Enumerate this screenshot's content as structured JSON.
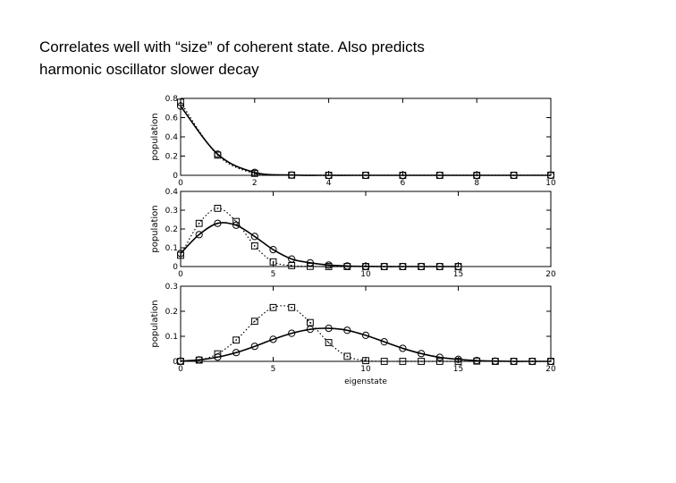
{
  "caption": {
    "line1": "Correlates well with “size” of coherent state. Also predicts",
    "line2": "harmonic oscillator slower decay"
  },
  "chart_data": [
    {
      "type": "line",
      "ylabel": "population",
      "xlabel": "",
      "xlim": [
        0,
        10
      ],
      "ylim": [
        0,
        0.8
      ],
      "xticks": [
        "0",
        "2",
        "4",
        "6",
        "8",
        "10"
      ],
      "yticks": [
        "0",
        "0.2",
        "0.4",
        "0.6",
        "0.8"
      ],
      "series": [
        {
          "style": "solid",
          "marker": "circle",
          "x": [
            0,
            1,
            2,
            3,
            4,
            5,
            6,
            7,
            8,
            9,
            10
          ],
          "y": [
            0.72,
            0.22,
            0.03,
            0.003,
            0,
            0,
            0,
            0,
            0,
            0,
            0
          ]
        },
        {
          "style": "dotted",
          "marker": "square",
          "x": [
            0,
            1,
            2,
            3,
            4,
            5,
            6,
            7,
            8,
            9,
            10
          ],
          "y": [
            0.76,
            0.21,
            0.02,
            0.002,
            0,
            0,
            0,
            0,
            0,
            0,
            0.002
          ]
        }
      ]
    },
    {
      "type": "line",
      "ylabel": "population",
      "xlabel": "",
      "xlim": [
        0,
        20
      ],
      "ylim": [
        0,
        0.4
      ],
      "xticks": [
        "0",
        "5",
        "10",
        "15",
        "20"
      ],
      "yticks": [
        "0",
        "0.1",
        "0.2",
        "0.3",
        "0.4"
      ],
      "series": [
        {
          "style": "solid",
          "marker": "circle",
          "x": [
            0,
            1,
            2,
            3,
            4,
            5,
            6,
            7,
            8,
            9,
            10,
            11,
            12,
            13,
            14,
            15
          ],
          "y": [
            0.07,
            0.17,
            0.23,
            0.22,
            0.16,
            0.09,
            0.04,
            0.02,
            0.008,
            0.003,
            0.001,
            0,
            0,
            0,
            0,
            0
          ]
        },
        {
          "style": "dotted",
          "marker": "square",
          "x": [
            0,
            1,
            2,
            3,
            4,
            5,
            6,
            7,
            8,
            9,
            10,
            11,
            12,
            13,
            14,
            15
          ],
          "y": [
            0.06,
            0.23,
            0.31,
            0.24,
            0.11,
            0.025,
            0.005,
            0.001,
            0,
            0,
            0,
            0,
            0,
            0,
            0,
            0
          ]
        }
      ]
    },
    {
      "type": "line",
      "ylabel": "population",
      "xlabel": "eigenstate",
      "xlim": [
        0,
        20
      ],
      "ylim": [
        0,
        0.3
      ],
      "xticks": [
        "0",
        "5",
        "10",
        "15",
        "20"
      ],
      "yticks": [
        "0",
        "0.1",
        "0.2",
        "0.3"
      ],
      "series": [
        {
          "style": "solid",
          "marker": "circle",
          "x": [
            0,
            1,
            2,
            3,
            4,
            5,
            6,
            7,
            8,
            9,
            10,
            11,
            12,
            13,
            14,
            15,
            16,
            17,
            18,
            19,
            20
          ],
          "y": [
            0.001,
            0.006,
            0.017,
            0.035,
            0.06,
            0.088,
            0.112,
            0.128,
            0.132,
            0.124,
            0.104,
            0.078,
            0.052,
            0.031,
            0.016,
            0.008,
            0.003,
            0.001,
            0,
            0,
            0
          ]
        },
        {
          "style": "dotted",
          "marker": "square",
          "x": [
            0,
            1,
            2,
            3,
            4,
            5,
            6,
            7,
            8,
            9,
            10,
            11,
            12,
            13,
            14,
            15,
            16,
            17,
            18,
            19,
            20
          ],
          "y": [
            0,
            0.005,
            0.03,
            0.085,
            0.16,
            0.215,
            0.215,
            0.155,
            0.075,
            0.02,
            0.003,
            0,
            0,
            0,
            0,
            0,
            0.001,
            0,
            0,
            0,
            0
          ]
        }
      ]
    }
  ]
}
